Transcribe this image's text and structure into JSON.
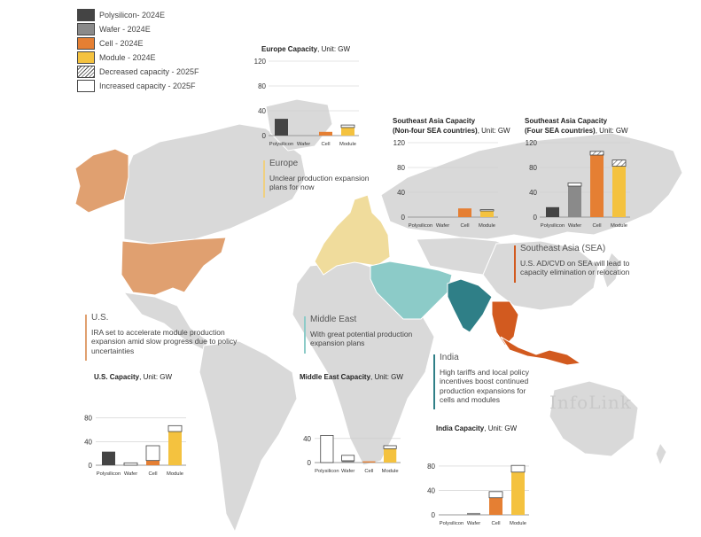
{
  "legend": [
    {
      "label": "Polysilicon- 2024E",
      "color": "#444444",
      "pattern": "solid"
    },
    {
      "label": "Wafer - 2024E",
      "color": "#8a8a8a",
      "pattern": "solid"
    },
    {
      "label": "Cell - 2024E",
      "color": "#e57f33",
      "pattern": "solid"
    },
    {
      "label": "Module - 2024E",
      "color": "#f4c23f",
      "pattern": "solid"
    },
    {
      "label": "Decreased capacity - 2025F",
      "color": "#ffffff",
      "pattern": "hatch"
    },
    {
      "label": "Increased capacity - 2025F",
      "color": "#ffffff",
      "pattern": "outline"
    }
  ],
  "colors": {
    "polysilicon": "#444444",
    "wafer": "#8a8a8a",
    "cell": "#e57f33",
    "module": "#f4c23f",
    "map_land": "#d9d9d9",
    "us": "#e0a070",
    "europe": "#f0dc9c",
    "middle_east": "#8ccbc8",
    "india": "#2f7f87",
    "sea": "#d25a1f",
    "note_us": "#e0a070",
    "note_europe": "#f0d080",
    "note_me": "#8ccbc8",
    "note_india": "#2f7f87",
    "note_sea": "#d25a1f"
  },
  "notes": {
    "europe": {
      "title": "Europe",
      "text": "Unclear production expansion plans for now"
    },
    "sea": {
      "title": "Southeast Asia (SEA)",
      "text": "U.S. AD/CVD on SEA will lead to capacity elimination or relocation"
    },
    "us": {
      "title": "U.S.",
      "text": "IRA set to accelerate module production expansion amid slow progress due to policy uncertainties"
    },
    "middle_east": {
      "title": "Middle East",
      "text": "With great potential production expansion plans"
    },
    "india": {
      "title": "India",
      "text": "High tariffs and local policy incentives boost continued production expansions for cells and modules"
    }
  },
  "watermark": "InfoLink",
  "chart_data": [
    {
      "id": "europe",
      "type": "bar",
      "stacked": true,
      "title": "Europe Capacity",
      "unit": ", Unit: GW",
      "categories": [
        "Polysilicon",
        "Wafer",
        "Cell",
        "Module"
      ],
      "yticks": [
        0,
        40,
        80,
        120
      ],
      "ylim": [
        0,
        120
      ],
      "series": [
        {
          "name": "2024E",
          "values": [
            27,
            0,
            6,
            13
          ]
        },
        {
          "name": "Increased capacity - 2025F",
          "values": [
            0,
            0,
            0,
            4
          ]
        },
        {
          "name": "Decreased capacity - 2025F",
          "values": [
            0,
            0,
            0,
            0
          ]
        }
      ]
    },
    {
      "id": "sea-nonfour",
      "type": "bar",
      "stacked": true,
      "title": "Southeast Asia Capacity",
      "title2": "(Non-four SEA countries)",
      "unit": ", Unit: GW",
      "categories": [
        "Polysilicon",
        "Wafer",
        "Cell",
        "Module"
      ],
      "yticks": [
        0,
        40,
        80,
        120
      ],
      "ylim": [
        0,
        120
      ],
      "series": [
        {
          "name": "2024E",
          "values": [
            0,
            0,
            14,
            10
          ]
        },
        {
          "name": "Increased capacity - 2025F",
          "values": [
            0,
            0,
            0,
            2
          ]
        },
        {
          "name": "Decreased capacity - 2025F",
          "values": [
            0,
            0,
            0,
            0
          ]
        }
      ]
    },
    {
      "id": "sea-four",
      "type": "bar",
      "stacked": true,
      "title": "Southeast Asia Capacity",
      "title2": "(Four SEA countries)",
      "unit": ", Unit: GW",
      "categories": [
        "Polysilicon",
        "Wafer",
        "Cell",
        "Module"
      ],
      "yticks": [
        0,
        40,
        80,
        120
      ],
      "ylim": [
        0,
        120
      ],
      "series": [
        {
          "name": "2024E",
          "values": [
            16,
            50,
            100,
            82
          ]
        },
        {
          "name": "Increased capacity - 2025F",
          "values": [
            0,
            5,
            0,
            0
          ]
        },
        {
          "name": "Decreased capacity - 2025F",
          "values": [
            0,
            0,
            6,
            10
          ]
        }
      ]
    },
    {
      "id": "us",
      "type": "bar",
      "stacked": true,
      "title": "U.S. Capacity",
      "unit": ", Unit: GW",
      "categories": [
        "Polysilicon",
        "Wafer",
        "Cell",
        "Module"
      ],
      "yticks": [
        0,
        40,
        80
      ],
      "ylim": [
        0,
        90
      ],
      "series": [
        {
          "name": "2024E",
          "values": [
            23,
            0,
            8,
            57
          ]
        },
        {
          "name": "Increased capacity - 2025F",
          "values": [
            0,
            4,
            25,
            10
          ]
        },
        {
          "name": "Decreased capacity - 2025F",
          "values": [
            0,
            0,
            0,
            0
          ]
        }
      ]
    },
    {
      "id": "middle-east",
      "type": "bar",
      "stacked": true,
      "title": "Middle East Capacity",
      "unit": ", Unit: GW",
      "categories": [
        "Polysilicon",
        "Wafer",
        "Cell",
        "Module"
      ],
      "yticks": [
        0,
        40
      ],
      "ylim": [
        0,
        50
      ],
      "series": [
        {
          "name": "2024E",
          "values": [
            0,
            3,
            2,
            23
          ]
        },
        {
          "name": "Increased capacity - 2025F",
          "values": [
            45,
            9,
            0,
            5
          ]
        },
        {
          "name": "Decreased capacity - 2025F",
          "values": [
            0,
            0,
            0,
            0
          ]
        }
      ]
    },
    {
      "id": "india",
      "type": "bar",
      "stacked": true,
      "title": "India Capacity",
      "unit": ", Unit: GW",
      "categories": [
        "Polysilicon",
        "Wafer",
        "Cell",
        "Module"
      ],
      "yticks": [
        0,
        40,
        80
      ],
      "ylim": [
        0,
        90
      ],
      "series": [
        {
          "name": "2024E",
          "values": [
            0,
            3,
            28,
            70
          ]
        },
        {
          "name": "Increased capacity - 2025F",
          "values": [
            0,
            0,
            10,
            11
          ]
        },
        {
          "name": "Decreased capacity - 2025F",
          "values": [
            0,
            0,
            0,
            0
          ]
        }
      ]
    }
  ]
}
